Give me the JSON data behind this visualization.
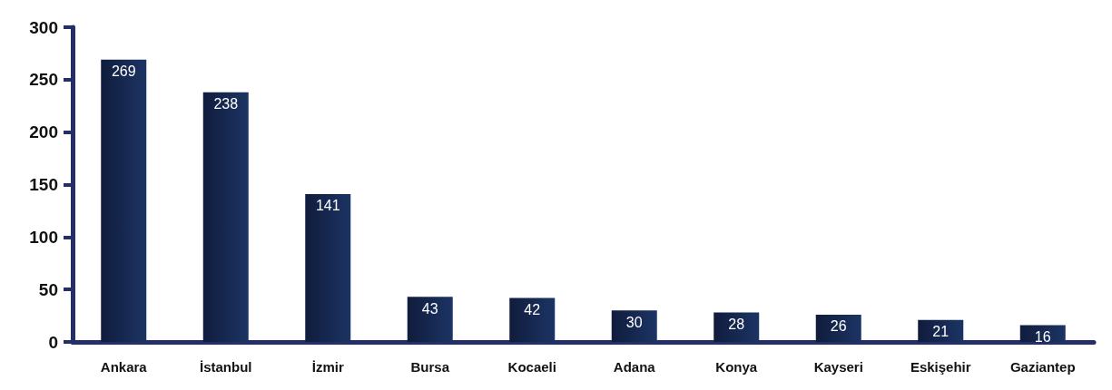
{
  "chart_data": {
    "type": "bar",
    "categories": [
      "Ankara",
      "İstanbul",
      "İzmir",
      "Bursa",
      "Kocaeli",
      "Adana",
      "Konya",
      "Kayseri",
      "Eskişehir",
      "Gaziantep"
    ],
    "values": [
      269,
      238,
      141,
      43,
      42,
      30,
      28,
      26,
      21,
      16
    ],
    "color": "#1c3464",
    "ylim": [
      0,
      300
    ],
    "yticks": [
      0,
      50,
      100,
      150,
      200,
      250,
      300
    ],
    "grid": false,
    "data_labels": true
  }
}
